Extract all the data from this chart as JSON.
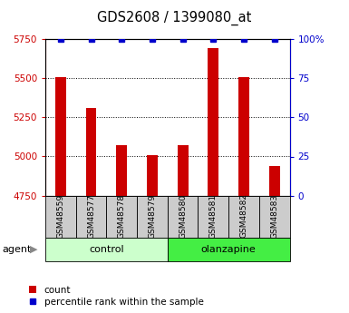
{
  "title": "GDS2608 / 1399080_at",
  "samples": [
    "GSM48559",
    "GSM48577",
    "GSM48578",
    "GSM48579",
    "GSM48580",
    "GSM48581",
    "GSM48582",
    "GSM48583"
  ],
  "counts": [
    5510,
    5310,
    5075,
    5010,
    5075,
    5690,
    5510,
    4940
  ],
  "percentile_ranks": [
    100,
    100,
    100,
    100,
    100,
    100,
    100,
    100
  ],
  "bar_color": "#cc0000",
  "dot_color": "#0000cc",
  "ylim_left": [
    4750,
    5750
  ],
  "ylim_right": [
    0,
    100
  ],
  "yticks_left": [
    4750,
    5000,
    5250,
    5500,
    5750
  ],
  "yticks_right": [
    0,
    25,
    50,
    75,
    100
  ],
  "background_color": "#ffffff",
  "sample_box_color": "#cccccc",
  "control_color_light": "#ccffcc",
  "olanzapine_color": "#44ee44",
  "group_label_control": "control",
  "group_label_olanzapine": "olanzapine",
  "legend_count_label": "count",
  "legend_pct_label": "percentile rank within the sample",
  "agent_label": "agent"
}
